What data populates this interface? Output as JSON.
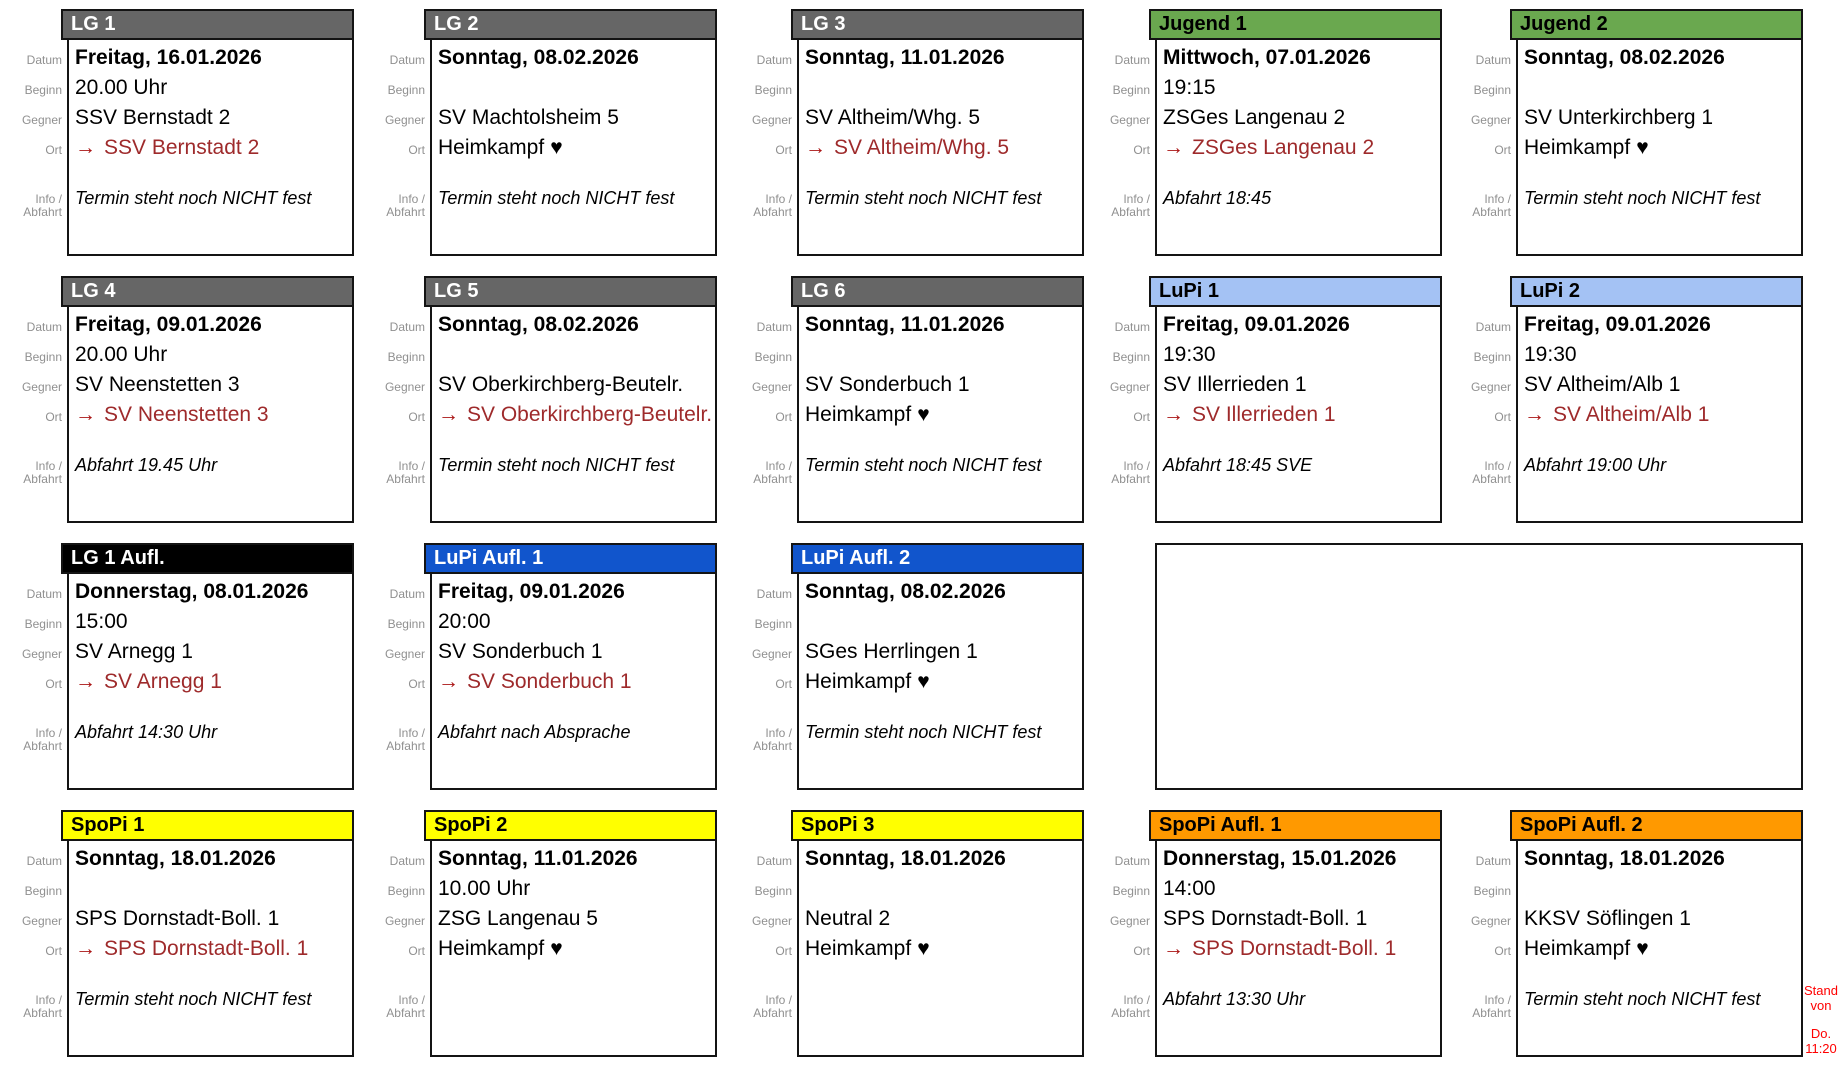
{
  "labels": {
    "datum": "Datum",
    "beginn": "Beginn",
    "gegner": "Gegner",
    "ort": "Ort",
    "info_line1": "Info /",
    "info_line2": "Abfahrt"
  },
  "icons": {
    "away_arrow": "→",
    "home_heart": "♥"
  },
  "palette": {
    "header_gray": "#666666",
    "header_green": "#6aa84f",
    "header_lightblue": "#a4c2f4",
    "header_blue": "#1155cc",
    "header_black": "#000000",
    "header_yellow": "#ffff00",
    "header_orange": "#ff9900",
    "border": "#141414",
    "label_gray": "#909090",
    "link_red": "#9e2a2b",
    "arrow_red": "#aa1414",
    "note_red": "#ff0000"
  },
  "note": {
    "line1": "Stand von",
    "line2": "Do. 11:20"
  },
  "cards": [
    {
      "row": 0,
      "col": 0,
      "team": "LG 1",
      "header_bg": "#666666",
      "header_fg": "#ffffff",
      "datum": "Freitag, 16.01.2026",
      "beginn": "20.00 Uhr",
      "gegner": "SSV Bernstadt 2",
      "ort_type": "away",
      "ort_text": "SSV Bernstadt 2",
      "info": "Termin steht noch NICHT fest"
    },
    {
      "row": 0,
      "col": 1,
      "team": "LG 2",
      "header_bg": "#666666",
      "header_fg": "#ffffff",
      "datum": "Sonntag, 08.02.2026",
      "beginn": "",
      "gegner": "SV Machtolsheim 5",
      "ort_type": "home",
      "ort_text": "Heimkampf",
      "info": "Termin steht noch NICHT fest"
    },
    {
      "row": 0,
      "col": 2,
      "team": "LG 3",
      "header_bg": "#666666",
      "header_fg": "#ffffff",
      "datum": "Sonntag, 11.01.2026",
      "beginn": "",
      "gegner": "SV Altheim/Whg. 5",
      "ort_type": "away",
      "ort_text": "SV Altheim/Whg. 5",
      "info": "Termin steht noch NICHT fest"
    },
    {
      "row": 0,
      "col": 3,
      "team": "Jugend 1",
      "header_bg": "#6aa84f",
      "header_fg": "#000000",
      "datum": "Mittwoch, 07.01.2026",
      "beginn": "19:15",
      "gegner": "ZSGes Langenau 2",
      "ort_type": "away",
      "ort_text": "ZSGes Langenau 2",
      "info": "Abfahrt 18:45"
    },
    {
      "row": 0,
      "col": 4,
      "team": "Jugend 2",
      "header_bg": "#6aa84f",
      "header_fg": "#000000",
      "datum": "Sonntag, 08.02.2026",
      "beginn": "",
      "gegner": "SV Unterkirchberg 1",
      "ort_type": "home",
      "ort_text": "Heimkampf",
      "info": "Termin steht noch NICHT fest"
    },
    {
      "row": 1,
      "col": 0,
      "team": "LG 4",
      "header_bg": "#666666",
      "header_fg": "#ffffff",
      "datum": "Freitag, 09.01.2026",
      "beginn": "20.00 Uhr",
      "gegner": "SV Neenstetten 3",
      "ort_type": "away",
      "ort_text": "SV Neenstetten 3",
      "info": "Abfahrt 19.45 Uhr"
    },
    {
      "row": 1,
      "col": 1,
      "team": "LG 5",
      "header_bg": "#666666",
      "header_fg": "#ffffff",
      "datum": "Sonntag, 08.02.2026",
      "beginn": "",
      "gegner": "SV Oberkirchberg-Beutelr.",
      "ort_type": "away",
      "ort_text": "SV Oberkirchberg-Beutelr.",
      "info": "Termin steht noch NICHT fest"
    },
    {
      "row": 1,
      "col": 2,
      "team": "LG 6",
      "header_bg": "#666666",
      "header_fg": "#ffffff",
      "datum": "Sonntag, 11.01.2026",
      "beginn": "",
      "gegner": "SV Sonderbuch 1",
      "ort_type": "home",
      "ort_text": "Heimkampf",
      "info": "Termin steht noch NICHT fest"
    },
    {
      "row": 1,
      "col": 3,
      "team": "LuPi 1",
      "header_bg": "#a4c2f4",
      "header_fg": "#000000",
      "datum": "Freitag, 09.01.2026",
      "beginn": "19:30",
      "gegner": "SV Illerrieden 1",
      "ort_type": "away",
      "ort_text": "SV Illerrieden 1",
      "info": "Abfahrt 18:45 SVE"
    },
    {
      "row": 1,
      "col": 4,
      "team": "LuPi 2",
      "header_bg": "#a4c2f4",
      "header_fg": "#000000",
      "datum": "Freitag, 09.01.2026",
      "beginn": "19:30",
      "gegner": "SV Altheim/Alb 1",
      "ort_type": "away",
      "ort_text": "SV Altheim/Alb 1",
      "info": "Abfahrt 19:00 Uhr"
    },
    {
      "row": 2,
      "col": 0,
      "team": "LG 1 Aufl.",
      "header_bg": "#000000",
      "header_fg": "#ffffff",
      "datum": "Donnerstag, 08.01.2026",
      "beginn": "15:00",
      "gegner": "SV Arnegg 1",
      "ort_type": "away",
      "ort_text": "SV Arnegg 1",
      "info": "Abfahrt 14:30 Uhr"
    },
    {
      "row": 2,
      "col": 1,
      "team": "LuPi Aufl. 1",
      "header_bg": "#1155cc",
      "header_fg": "#ffffff",
      "datum": "Freitag, 09.01.2026",
      "beginn": "20:00",
      "gegner": "SV Sonderbuch 1",
      "ort_type": "away",
      "ort_text": "SV Sonderbuch 1",
      "info": "Abfahrt nach Absprache"
    },
    {
      "row": 2,
      "col": 2,
      "team": "LuPi Aufl. 2",
      "header_bg": "#1155cc",
      "header_fg": "#ffffff",
      "datum": "Sonntag, 08.02.2026",
      "beginn": "",
      "gegner": "SGes Herrlingen 1",
      "ort_type": "home",
      "ort_text": "Heimkampf",
      "info": "Termin steht noch NICHT fest"
    },
    {
      "row": 3,
      "col": 0,
      "team": "SpoPi 1",
      "header_bg": "#ffff00",
      "header_fg": "#000000",
      "datum": "Sonntag, 18.01.2026",
      "beginn": "",
      "gegner": "SPS Dornstadt-Boll. 1",
      "ort_type": "away",
      "ort_text": "SPS Dornstadt-Boll. 1",
      "info": "Termin steht noch NICHT fest"
    },
    {
      "row": 3,
      "col": 1,
      "team": "SpoPi 2",
      "header_bg": "#ffff00",
      "header_fg": "#000000",
      "datum": "Sonntag, 11.01.2026",
      "beginn": "10.00 Uhr",
      "gegner": "ZSG Langenau 5",
      "ort_type": "home",
      "ort_text": "Heimkampf",
      "info": ""
    },
    {
      "row": 3,
      "col": 2,
      "team": "SpoPi 3",
      "header_bg": "#ffff00",
      "header_fg": "#000000",
      "datum": "Sonntag, 18.01.2026",
      "beginn": "",
      "gegner": "Neutral 2",
      "ort_type": "home",
      "ort_text": "Heimkampf",
      "info": ""
    },
    {
      "row": 3,
      "col": 3,
      "team": "SpoPi Aufl. 1",
      "header_bg": "#ff9900",
      "header_fg": "#000000",
      "datum": "Donnerstag, 15.01.2026",
      "beginn": "14:00",
      "gegner": "SPS Dornstadt-Boll. 1",
      "ort_type": "away",
      "ort_text": "SPS Dornstadt-Boll. 1",
      "info": "Abfahrt 13:30 Uhr"
    },
    {
      "row": 3,
      "col": 4,
      "team": "SpoPi Aufl. 2",
      "header_bg": "#ff9900",
      "header_fg": "#000000",
      "datum": "Sonntag, 18.01.2026",
      "beginn": "",
      "gegner": "KKSV Söflingen 1",
      "ort_type": "home",
      "ort_text": "Heimkampf",
      "info": "Termin steht noch NICHT fest"
    }
  ],
  "empty_slot": {
    "row": 2,
    "col": 3,
    "col_span": 2
  }
}
